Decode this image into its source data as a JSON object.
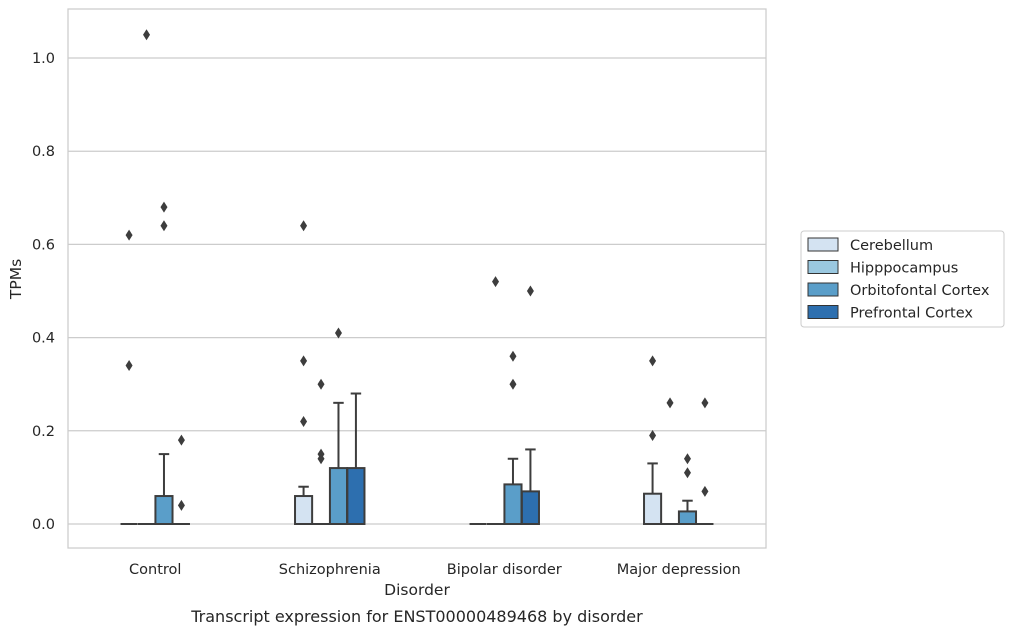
{
  "chart_data": {
    "type": "boxplot",
    "title": "",
    "caption": "Transcript expression for ENST00000489468 by disorder",
    "xlabel": "Disorder",
    "ylabel": "TPMs",
    "ylim": [
      -0.05,
      1.1
    ],
    "yticks": [
      0.0,
      0.2,
      0.4,
      0.6,
      0.8,
      1.0
    ],
    "ytick_labels": [
      "0.0",
      "0.2",
      "0.4",
      "0.6",
      "0.8",
      "1.0"
    ],
    "grid": "horizontal",
    "legend_position": "right",
    "categories": [
      "Control",
      "Schizophrenia",
      "Bipolar disorder",
      "Major depression"
    ],
    "series": [
      {
        "name": "Cerebellum",
        "color": "#d4e3f2",
        "boxes": [
          {
            "q1": 0.0,
            "median": 0.0,
            "q3": 0.0,
            "whisker_low": 0.0,
            "whisker_high": 0.0,
            "outliers": [
              0.62,
              0.34
            ]
          },
          {
            "q1": 0.0,
            "median": 0.0,
            "q3": 0.06,
            "whisker_low": 0.0,
            "whisker_high": 0.08,
            "outliers": [
              0.64,
              0.35,
              0.22
            ]
          },
          {
            "q1": 0.0,
            "median": 0.0,
            "q3": 0.0,
            "whisker_low": 0.0,
            "whisker_high": 0.0,
            "outliers": []
          },
          {
            "q1": 0.0,
            "median": 0.0,
            "q3": 0.065,
            "whisker_low": 0.0,
            "whisker_high": 0.13,
            "outliers": [
              0.35,
              0.19
            ]
          }
        ]
      },
      {
        "name": "Hipppocampus",
        "color": "#9ac8e0",
        "boxes": [
          {
            "q1": 0.0,
            "median": 0.0,
            "q3": 0.0,
            "whisker_low": 0.0,
            "whisker_high": 0.0,
            "outliers": [
              1.05
            ]
          },
          {
            "q1": 0.0,
            "median": 0.0,
            "q3": 0.0,
            "whisker_low": 0.0,
            "whisker_high": 0.0,
            "outliers": [
              0.3,
              0.15,
              0.14
            ]
          },
          {
            "q1": 0.0,
            "median": 0.0,
            "q3": 0.0,
            "whisker_low": 0.0,
            "whisker_high": 0.0,
            "outliers": [
              0.52
            ]
          },
          {
            "q1": 0.0,
            "median": 0.0,
            "q3": 0.0,
            "whisker_low": 0.0,
            "whisker_high": 0.0,
            "outliers": [
              0.26
            ]
          }
        ]
      },
      {
        "name": "Orbitofontal Cortex",
        "color": "#5a9ec9",
        "boxes": [
          {
            "q1": 0.0,
            "median": 0.0,
            "q3": 0.06,
            "whisker_low": 0.0,
            "whisker_high": 0.15,
            "outliers": [
              0.68,
              0.64
            ]
          },
          {
            "q1": 0.0,
            "median": 0.0,
            "q3": 0.12,
            "whisker_low": 0.0,
            "whisker_high": 0.26,
            "outliers": [
              0.41
            ]
          },
          {
            "q1": 0.0,
            "median": 0.0,
            "q3": 0.085,
            "whisker_low": 0.0,
            "whisker_high": 0.14,
            "outliers": [
              0.36,
              0.3
            ]
          },
          {
            "q1": 0.0,
            "median": 0.0,
            "q3": 0.027,
            "whisker_low": 0.0,
            "whisker_high": 0.05,
            "outliers": [
              0.14,
              0.11
            ]
          }
        ]
      },
      {
        "name": "Prefrontal Cortex",
        "color": "#2d6faf",
        "boxes": [
          {
            "q1": 0.0,
            "median": 0.0,
            "q3": 0.0,
            "whisker_low": 0.0,
            "whisker_high": 0.0,
            "outliers": [
              0.18,
              0.04
            ]
          },
          {
            "q1": 0.0,
            "median": 0.0,
            "q3": 0.12,
            "whisker_low": 0.0,
            "whisker_high": 0.28,
            "outliers": []
          },
          {
            "q1": 0.0,
            "median": 0.0,
            "q3": 0.07,
            "whisker_low": 0.0,
            "whisker_high": 0.16,
            "outliers": [
              0.5
            ]
          },
          {
            "q1": 0.0,
            "median": 0.0,
            "q3": 0.0,
            "whisker_low": 0.0,
            "whisker_high": 0.0,
            "outliers": [
              0.26,
              0.07
            ]
          }
        ]
      }
    ]
  }
}
